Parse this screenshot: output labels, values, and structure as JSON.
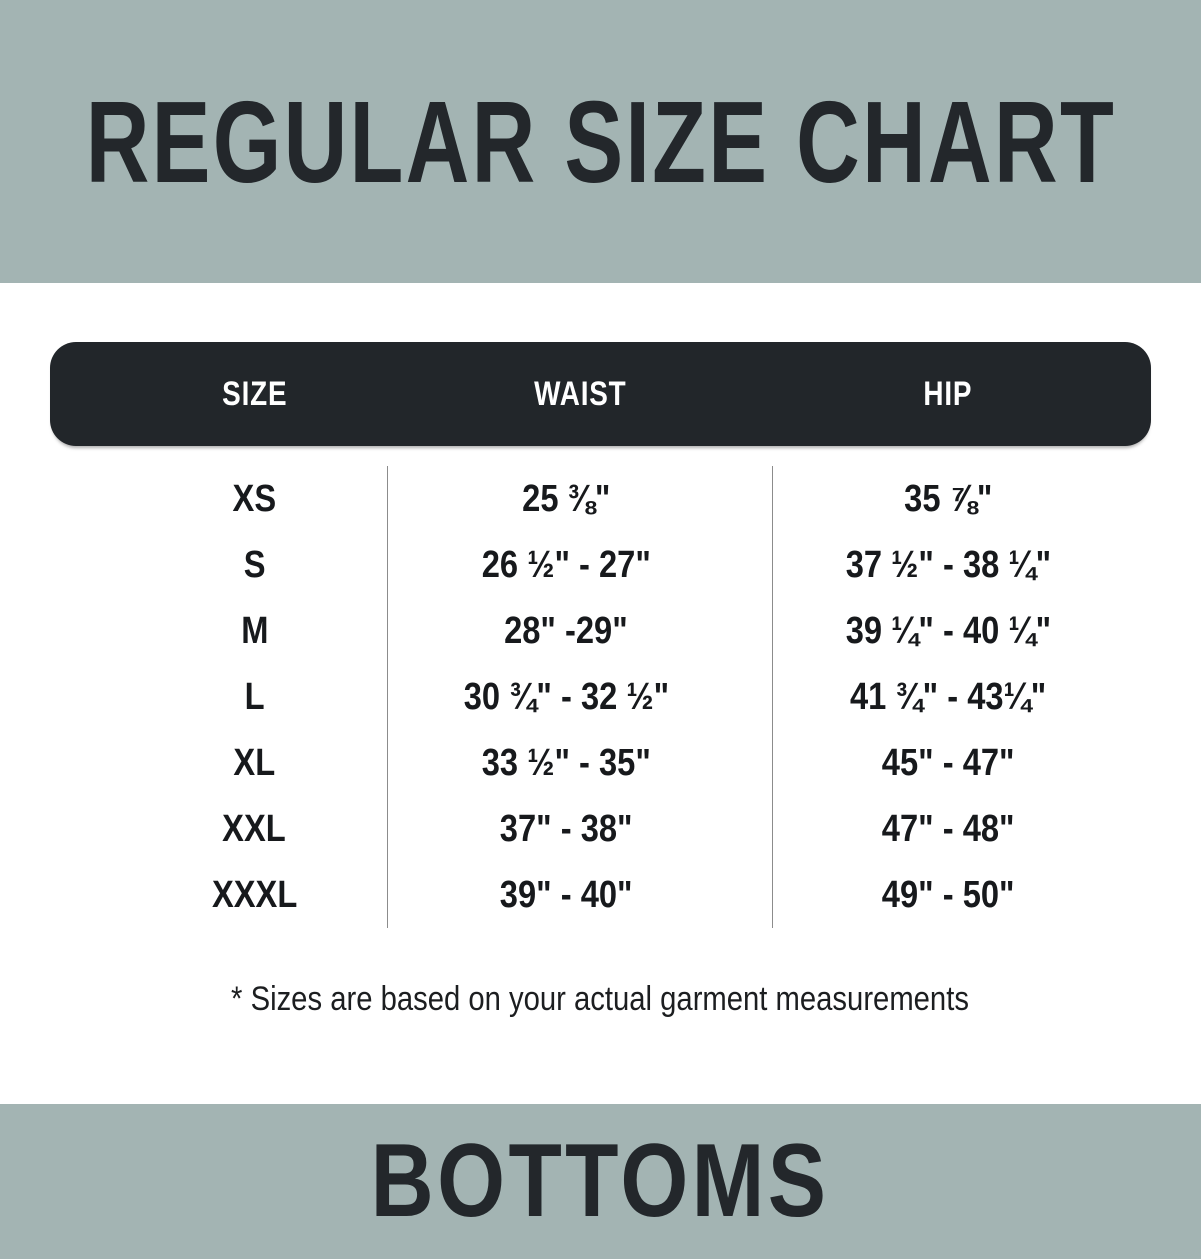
{
  "header": {
    "title": "REGULAR SIZE CHART"
  },
  "table": {
    "columns": [
      "SIZE",
      "WAIST",
      "HIP"
    ],
    "rows": [
      {
        "size": "XS",
        "waist": "25 ⅜\"",
        "hip": "35 ⅞\""
      },
      {
        "size": "S",
        "waist": "26 ½\" - 27\"",
        "hip": "37 ½\" - 38 ¼\""
      },
      {
        "size": "M",
        "waist": "28\" -29\"",
        "hip": "39 ¼\" - 40 ¼\""
      },
      {
        "size": "L",
        "waist": "30 ¾\" - 32 ½\"",
        "hip": "41 ¾\" - 43¼\""
      },
      {
        "size": "XL",
        "waist": "33 ½\" - 35\"",
        "hip": "45\" - 47\""
      },
      {
        "size": "XXL",
        "waist": "37\" - 38\"",
        "hip": "47\" - 48\""
      },
      {
        "size": "XXXL",
        "waist": "39\" - 40\"",
        "hip": "49\" - 50\""
      }
    ]
  },
  "footnote": "* Sizes are based on your actual garment measurements",
  "footer": {
    "title": "BOTTOMS"
  },
  "colors": {
    "banner": "#a3b4b3",
    "header_bar": "#22262a",
    "text_dark": "#23272b",
    "divider": "#8c8c8c",
    "header_text": "#ffffff"
  }
}
